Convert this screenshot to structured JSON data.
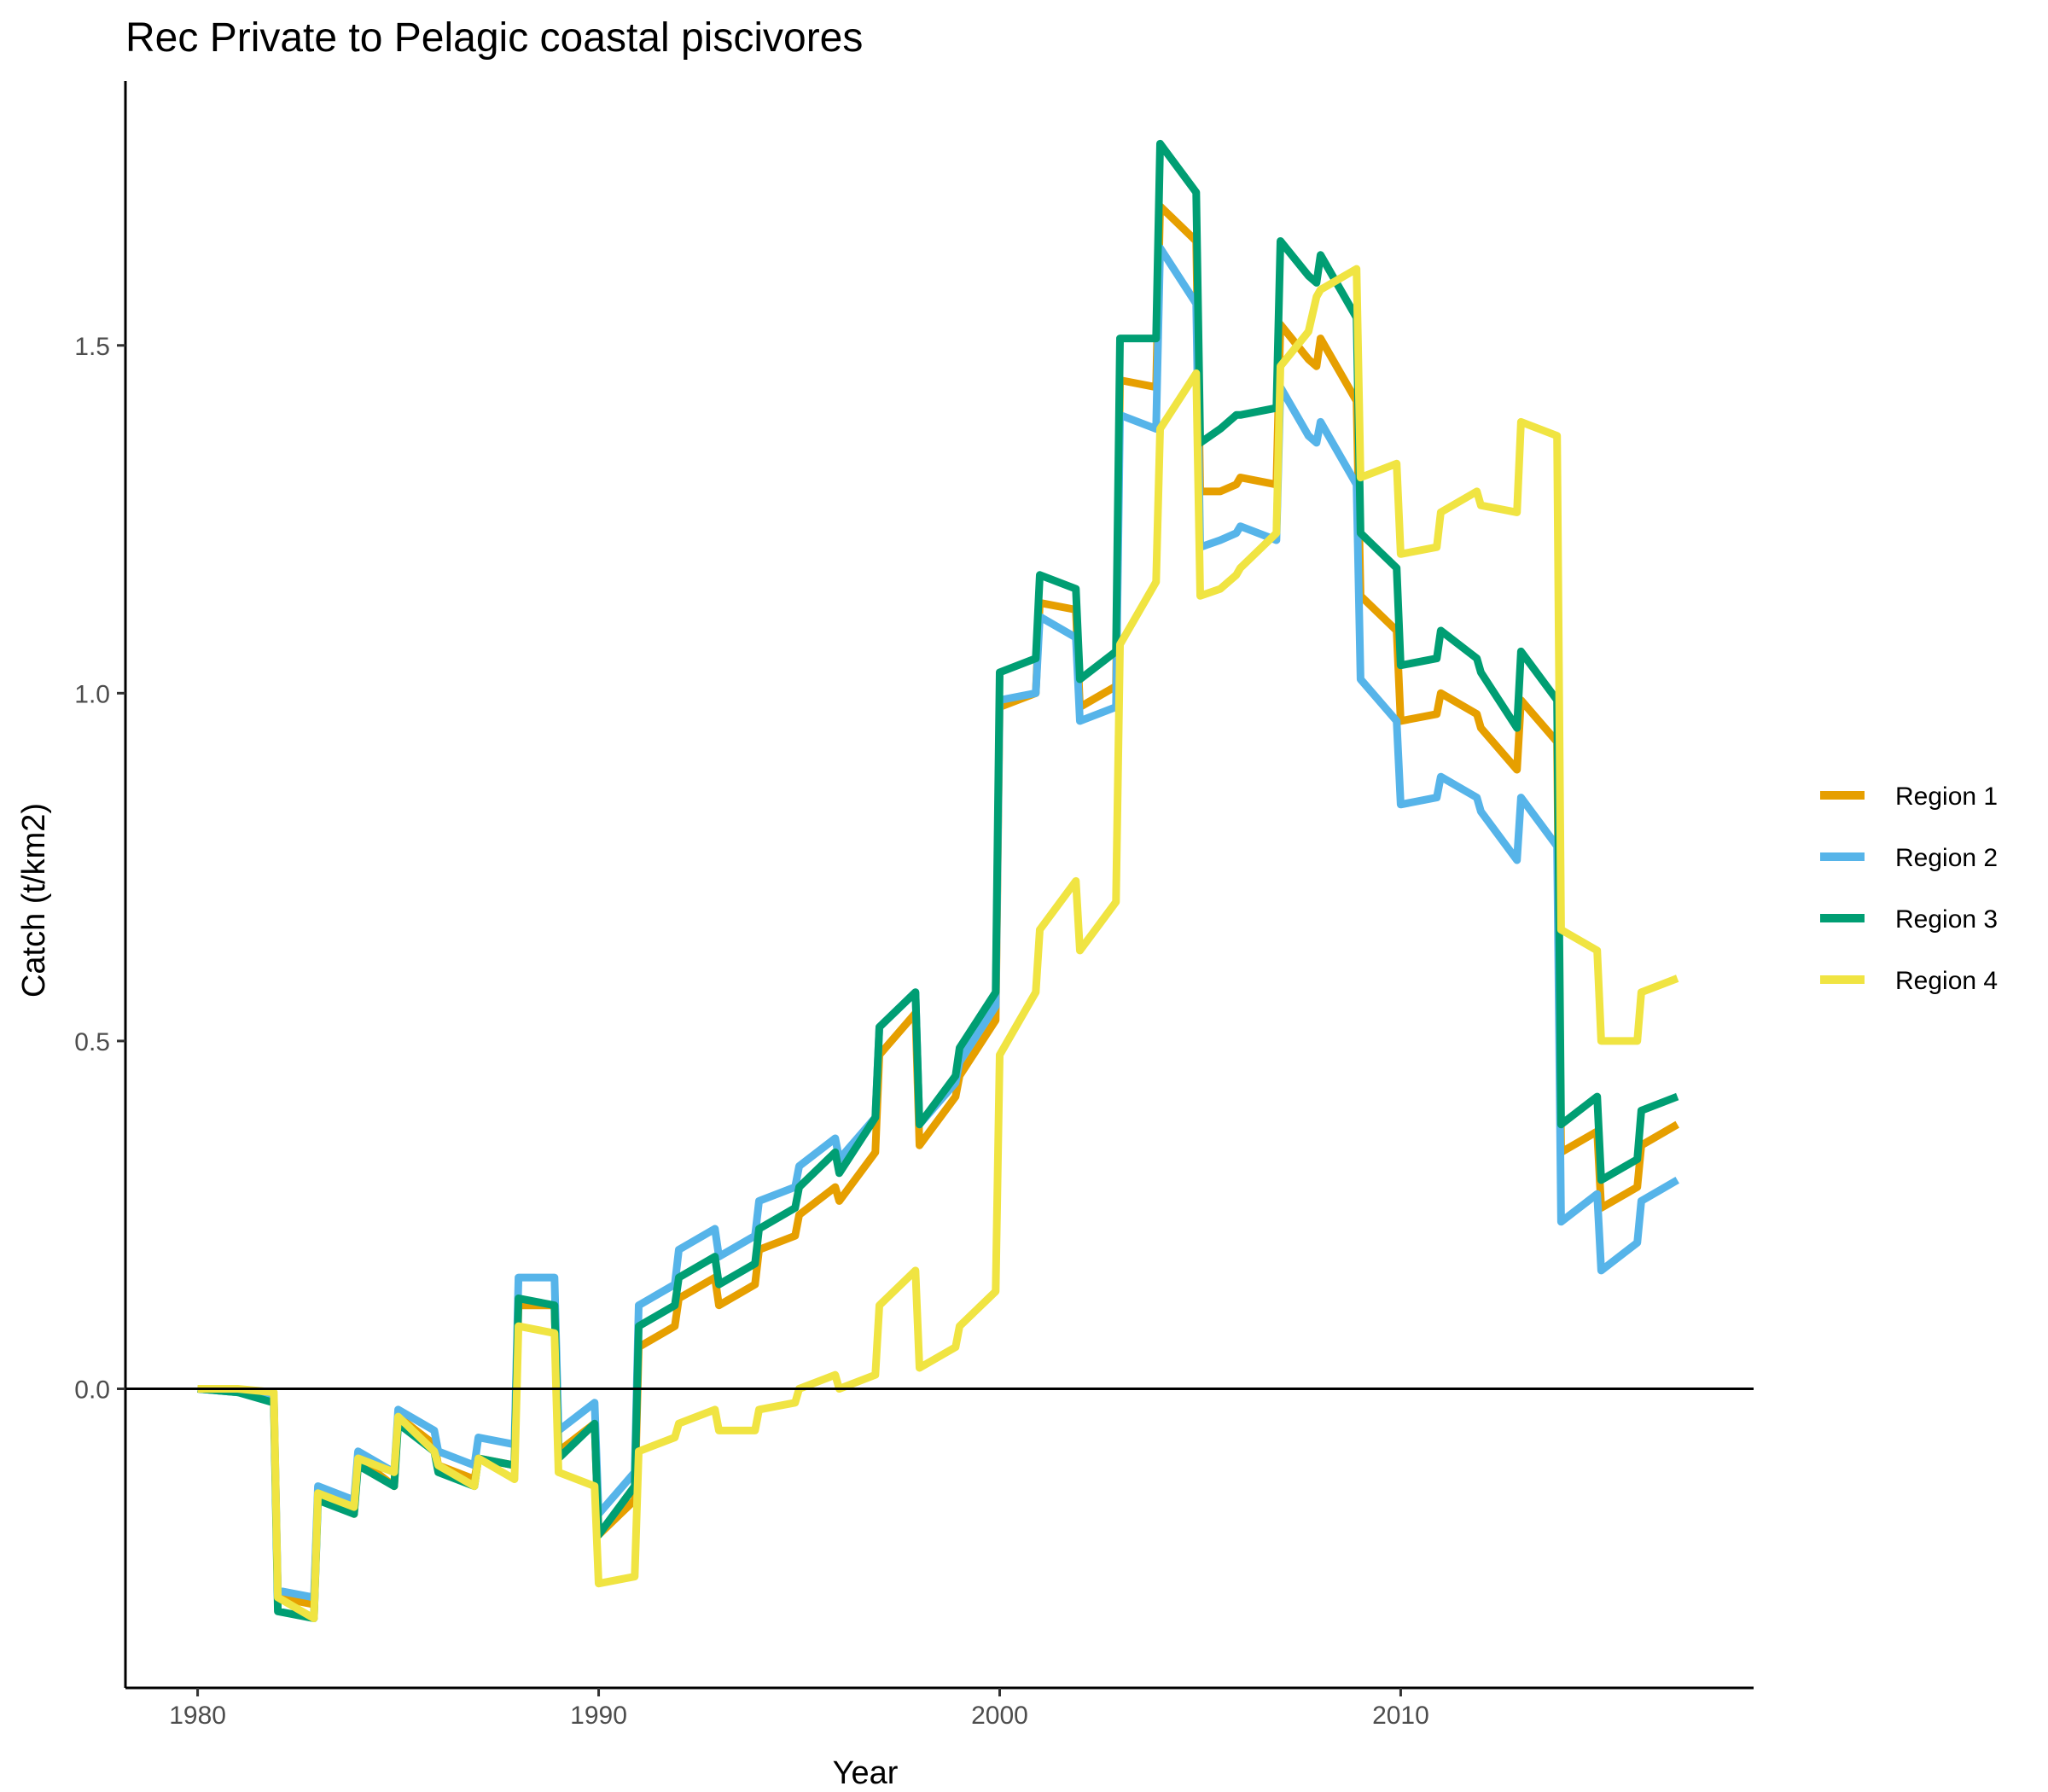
{
  "chart_data": {
    "type": "line",
    "title": "Rec Private to Pelagic coastal piscivores",
    "xlabel": "Year",
    "ylabel": "Catch (t/km2)",
    "xlim": [
      1978.2,
      2018.8
    ],
    "ylim": [
      -0.43,
      1.88
    ],
    "x_ticks": [
      1980,
      1990,
      2000,
      2010
    ],
    "y_ticks": [
      0.0,
      0.5,
      1.0,
      1.5
    ],
    "x_tick_labels": [
      "1980",
      "1990",
      "2000",
      "2010"
    ],
    "y_tick_labels": [
      "0.0",
      "0.5",
      "1.0",
      "1.5"
    ],
    "hline": 0.0,
    "grid": false,
    "legend_position": "right",
    "series": [
      {
        "name": "Region 1",
        "color": "#E69F00",
        "points": [
          [
            1980,
            0
          ],
          [
            1981,
            -0.005
          ],
          [
            1981.9,
            -0.015
          ],
          [
            1982,
            -0.3
          ],
          [
            1982.9,
            -0.31
          ],
          [
            1983,
            -0.15
          ],
          [
            1983.9,
            -0.18
          ],
          [
            1984,
            -0.1
          ],
          [
            1984.9,
            -0.14
          ],
          [
            1985,
            -0.04
          ],
          [
            1985.9,
            -0.08
          ],
          [
            1986,
            -0.11
          ],
          [
            1986.9,
            -0.13
          ],
          [
            1987,
            -0.1
          ],
          [
            1987.9,
            -0.11
          ],
          [
            1988,
            0.12
          ],
          [
            1988.9,
            0.12
          ],
          [
            1989,
            -0.09
          ],
          [
            1989.9,
            -0.05
          ],
          [
            1990,
            -0.21
          ],
          [
            1990.9,
            -0.16
          ],
          [
            1991,
            0.06
          ],
          [
            1991.9,
            0.09
          ],
          [
            1992,
            0.13
          ],
          [
            1992.9,
            0.16
          ],
          [
            1993,
            0.12
          ],
          [
            1993.9,
            0.15
          ],
          [
            1994,
            0.2
          ],
          [
            1994.9,
            0.22
          ],
          [
            1995,
            0.25
          ],
          [
            1995.9,
            0.29
          ],
          [
            1996,
            0.27
          ],
          [
            1996.9,
            0.34
          ],
          [
            1997,
            0.48
          ],
          [
            1997.9,
            0.54
          ],
          [
            1998,
            0.35
          ],
          [
            1998.9,
            0.42
          ],
          [
            1999,
            0.45
          ],
          [
            1999.9,
            0.53
          ],
          [
            2000,
            0.98
          ],
          [
            2000.9,
            1.0
          ],
          [
            2001,
            1.13
          ],
          [
            2001.9,
            1.12
          ],
          [
            2002,
            0.98
          ],
          [
            2002.9,
            1.01
          ],
          [
            2003,
            1.45
          ],
          [
            2003.9,
            1.44
          ],
          [
            2004,
            1.7
          ],
          [
            2004.9,
            1.65
          ],
          [
            2005,
            1.29
          ],
          [
            2005.5,
            1.29
          ],
          [
            2005.9,
            1.3
          ],
          [
            2006,
            1.31
          ],
          [
            2006.9,
            1.3
          ],
          [
            2007,
            1.53
          ],
          [
            2007.7,
            1.48
          ],
          [
            2007.9,
            1.47
          ],
          [
            2008,
            1.51
          ],
          [
            2008.9,
            1.42
          ],
          [
            2009,
            1.14
          ],
          [
            2009.9,
            1.09
          ],
          [
            2010,
            0.96
          ],
          [
            2010.9,
            0.97
          ],
          [
            2011,
            1.0
          ],
          [
            2011.9,
            0.97
          ],
          [
            2012,
            0.95
          ],
          [
            2012.9,
            0.89
          ],
          [
            2013,
            0.99
          ],
          [
            2013.9,
            0.93
          ],
          [
            2014,
            0.34
          ],
          [
            2014.9,
            0.37
          ],
          [
            2015,
            0.26
          ],
          [
            2015.9,
            0.29
          ],
          [
            2016,
            0.35
          ],
          [
            2016.9,
            0.38
          ]
        ]
      },
      {
        "name": "Region 2",
        "color": "#56B4E9",
        "points": [
          [
            1980,
            0
          ],
          [
            1981,
            -0.005
          ],
          [
            1981.9,
            -0.01
          ],
          [
            1982,
            -0.29
          ],
          [
            1982.9,
            -0.3
          ],
          [
            1983,
            -0.14
          ],
          [
            1983.9,
            -0.16
          ],
          [
            1984,
            -0.09
          ],
          [
            1984.9,
            -0.12
          ],
          [
            1985,
            -0.03
          ],
          [
            1985.9,
            -0.06
          ],
          [
            1986,
            -0.09
          ],
          [
            1986.9,
            -0.11
          ],
          [
            1987,
            -0.07
          ],
          [
            1987.9,
            -0.08
          ],
          [
            1988,
            0.16
          ],
          [
            1988.9,
            0.16
          ],
          [
            1989,
            -0.06
          ],
          [
            1989.9,
            -0.02
          ],
          [
            1990,
            -0.18
          ],
          [
            1990.9,
            -0.12
          ],
          [
            1991,
            0.12
          ],
          [
            1991.9,
            0.15
          ],
          [
            1992,
            0.2
          ],
          [
            1992.9,
            0.23
          ],
          [
            1993,
            0.19
          ],
          [
            1993.9,
            0.22
          ],
          [
            1994,
            0.27
          ],
          [
            1994.9,
            0.29
          ],
          [
            1995,
            0.32
          ],
          [
            1995.9,
            0.36
          ],
          [
            1996,
            0.33
          ],
          [
            1996.9,
            0.39
          ],
          [
            1997,
            0.52
          ],
          [
            1997.9,
            0.57
          ],
          [
            1998,
            0.38
          ],
          [
            1998.9,
            0.44
          ],
          [
            1999,
            0.47
          ],
          [
            1999.9,
            0.55
          ],
          [
            2000,
            0.99
          ],
          [
            2000.9,
            1.0
          ],
          [
            2001,
            1.11
          ],
          [
            2001.9,
            1.08
          ],
          [
            2002,
            0.96
          ],
          [
            2002.9,
            0.98
          ],
          [
            2003,
            1.4
          ],
          [
            2003.9,
            1.38
          ],
          [
            2004,
            1.64
          ],
          [
            2004.9,
            1.56
          ],
          [
            2005,
            1.21
          ],
          [
            2005.5,
            1.22
          ],
          [
            2005.9,
            1.23
          ],
          [
            2006,
            1.24
          ],
          [
            2006.9,
            1.22
          ],
          [
            2007,
            1.44
          ],
          [
            2007.7,
            1.37
          ],
          [
            2007.9,
            1.36
          ],
          [
            2008,
            1.39
          ],
          [
            2008.9,
            1.3
          ],
          [
            2009,
            1.02
          ],
          [
            2009.9,
            0.96
          ],
          [
            2010,
            0.84
          ],
          [
            2010.9,
            0.85
          ],
          [
            2011,
            0.88
          ],
          [
            2011.9,
            0.85
          ],
          [
            2012,
            0.83
          ],
          [
            2012.9,
            0.76
          ],
          [
            2013,
            0.85
          ],
          [
            2013.9,
            0.78
          ],
          [
            2014,
            0.24
          ],
          [
            2014.9,
            0.28
          ],
          [
            2015,
            0.17
          ],
          [
            2015.9,
            0.21
          ],
          [
            2016,
            0.27
          ],
          [
            2016.9,
            0.3
          ]
        ]
      },
      {
        "name": "Region 3",
        "color": "#009E73",
        "points": [
          [
            1980,
            0
          ],
          [
            1981,
            -0.005
          ],
          [
            1981.9,
            -0.02
          ],
          [
            1982,
            -0.32
          ],
          [
            1982.9,
            -0.33
          ],
          [
            1983,
            -0.16
          ],
          [
            1983.9,
            -0.18
          ],
          [
            1984,
            -0.11
          ],
          [
            1984.9,
            -0.14
          ],
          [
            1985,
            -0.05
          ],
          [
            1985.9,
            -0.09
          ],
          [
            1986,
            -0.12
          ],
          [
            1986.9,
            -0.14
          ],
          [
            1987,
            -0.1
          ],
          [
            1987.9,
            -0.11
          ],
          [
            1988,
            0.13
          ],
          [
            1988.9,
            0.12
          ],
          [
            1989,
            -0.1
          ],
          [
            1989.9,
            -0.05
          ],
          [
            1990,
            -0.21
          ],
          [
            1990.9,
            -0.14
          ],
          [
            1991,
            0.09
          ],
          [
            1991.9,
            0.12
          ],
          [
            1992,
            0.16
          ],
          [
            1992.9,
            0.19
          ],
          [
            1993,
            0.15
          ],
          [
            1993.9,
            0.18
          ],
          [
            1994,
            0.23
          ],
          [
            1994.9,
            0.26
          ],
          [
            1995,
            0.29
          ],
          [
            1995.9,
            0.34
          ],
          [
            1996,
            0.31
          ],
          [
            1996.9,
            0.39
          ],
          [
            1997,
            0.52
          ],
          [
            1997.9,
            0.57
          ],
          [
            1998,
            0.38
          ],
          [
            1998.9,
            0.45
          ],
          [
            1999,
            0.49
          ],
          [
            1999.9,
            0.57
          ],
          [
            2000,
            1.03
          ],
          [
            2000.9,
            1.05
          ],
          [
            2001,
            1.17
          ],
          [
            2001.9,
            1.15
          ],
          [
            2002,
            1.02
          ],
          [
            2002.9,
            1.06
          ],
          [
            2003,
            1.51
          ],
          [
            2003.9,
            1.51
          ],
          [
            2004,
            1.79
          ],
          [
            2004.9,
            1.72
          ],
          [
            2005,
            1.36
          ],
          [
            2005.5,
            1.38
          ],
          [
            2005.9,
            1.4
          ],
          [
            2006,
            1.4
          ],
          [
            2006.9,
            1.41
          ],
          [
            2007,
            1.65
          ],
          [
            2007.7,
            1.6
          ],
          [
            2007.9,
            1.59
          ],
          [
            2008,
            1.63
          ],
          [
            2008.9,
            1.54
          ],
          [
            2009,
            1.23
          ],
          [
            2009.9,
            1.18
          ],
          [
            2010,
            1.04
          ],
          [
            2010.9,
            1.05
          ],
          [
            2011,
            1.09
          ],
          [
            2011.9,
            1.05
          ],
          [
            2012,
            1.03
          ],
          [
            2012.9,
            0.95
          ],
          [
            2013,
            1.06
          ],
          [
            2013.9,
            0.99
          ],
          [
            2014,
            0.38
          ],
          [
            2014.9,
            0.42
          ],
          [
            2015,
            0.3
          ],
          [
            2015.9,
            0.33
          ],
          [
            2016,
            0.4
          ],
          [
            2016.9,
            0.42
          ]
        ]
      },
      {
        "name": "Region 4",
        "color": "#F0E442",
        "points": [
          [
            1980,
            0
          ],
          [
            1981,
            0
          ],
          [
            1981.9,
            -0.005
          ],
          [
            1982,
            -0.3
          ],
          [
            1982.9,
            -0.33
          ],
          [
            1983,
            -0.15
          ],
          [
            1983.9,
            -0.17
          ],
          [
            1984,
            -0.1
          ],
          [
            1984.9,
            -0.12
          ],
          [
            1985,
            -0.04
          ],
          [
            1985.9,
            -0.09
          ],
          [
            1986,
            -0.11
          ],
          [
            1986.9,
            -0.14
          ],
          [
            1987,
            -0.1
          ],
          [
            1987.9,
            -0.13
          ],
          [
            1988,
            0.09
          ],
          [
            1988.9,
            0.08
          ],
          [
            1989,
            -0.12
          ],
          [
            1989.9,
            -0.14
          ],
          [
            1990,
            -0.28
          ],
          [
            1990.9,
            -0.27
          ],
          [
            1991,
            -0.09
          ],
          [
            1991.9,
            -0.07
          ],
          [
            1992,
            -0.05
          ],
          [
            1992.9,
            -0.03
          ],
          [
            1993,
            -0.06
          ],
          [
            1993.9,
            -0.06
          ],
          [
            1994,
            -0.03
          ],
          [
            1994.9,
            -0.02
          ],
          [
            1995,
            0.0
          ],
          [
            1995.9,
            0.02
          ],
          [
            1996,
            0.0
          ],
          [
            1996.9,
            0.02
          ],
          [
            1997,
            0.12
          ],
          [
            1997.9,
            0.17
          ],
          [
            1998,
            0.03
          ],
          [
            1998.9,
            0.06
          ],
          [
            1999,
            0.09
          ],
          [
            1999.9,
            0.14
          ],
          [
            2000,
            0.48
          ],
          [
            2000.9,
            0.57
          ],
          [
            2001,
            0.66
          ],
          [
            2001.9,
            0.73
          ],
          [
            2002,
            0.63
          ],
          [
            2002.9,
            0.7
          ],
          [
            2003,
            1.07
          ],
          [
            2003.9,
            1.16
          ],
          [
            2004,
            1.38
          ],
          [
            2004.9,
            1.46
          ],
          [
            2005,
            1.14
          ],
          [
            2005.5,
            1.15
          ],
          [
            2005.9,
            1.17
          ],
          [
            2006,
            1.18
          ],
          [
            2006.9,
            1.23
          ],
          [
            2007,
            1.47
          ],
          [
            2007.7,
            1.52
          ],
          [
            2007.9,
            1.57
          ],
          [
            2008,
            1.58
          ],
          [
            2008.9,
            1.61
          ],
          [
            2009,
            1.31
          ],
          [
            2009.9,
            1.33
          ],
          [
            2010,
            1.2
          ],
          [
            2010.9,
            1.21
          ],
          [
            2011,
            1.26
          ],
          [
            2011.9,
            1.29
          ],
          [
            2012,
            1.27
          ],
          [
            2012.9,
            1.26
          ],
          [
            2013,
            1.39
          ],
          [
            2013.9,
            1.37
          ],
          [
            2014,
            0.66
          ],
          [
            2014.9,
            0.63
          ],
          [
            2015,
            0.5
          ],
          [
            2015.9,
            0.5
          ],
          [
            2016,
            0.57
          ],
          [
            2016.9,
            0.59
          ]
        ]
      }
    ]
  }
}
